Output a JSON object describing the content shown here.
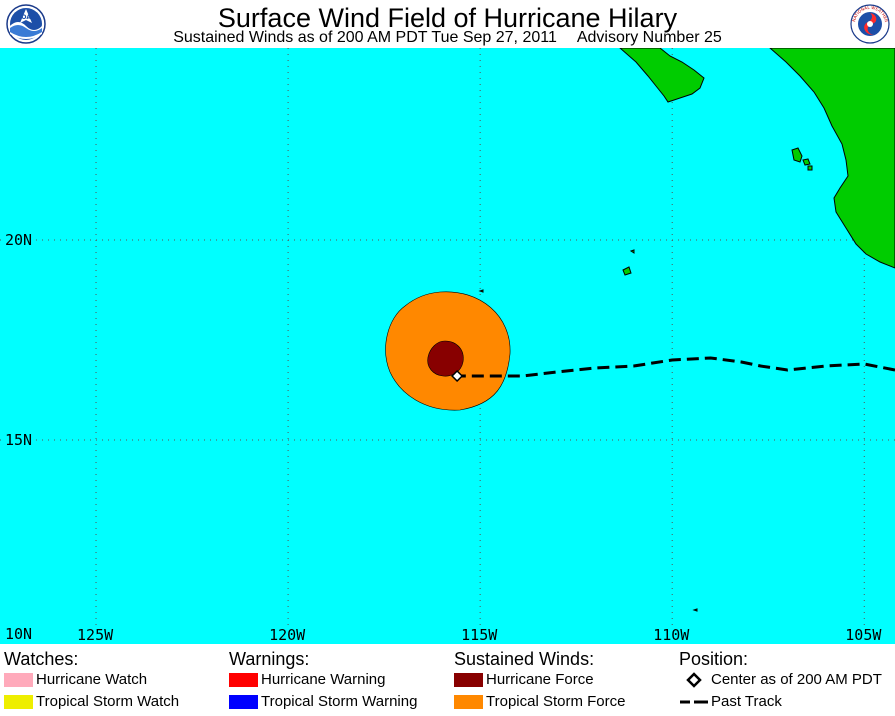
{
  "header": {
    "title": "Surface Wind Field of Hurricane Hilary",
    "subtitle_left": "Sustained Winds as of 200 AM PDT Tue Sep 27, 2011",
    "subtitle_right": "Advisory Number 25"
  },
  "logos": {
    "noaa": "NOAA",
    "nws": "NATIONAL WEATHER SERVICE"
  },
  "map": {
    "lon_range": [
      -127.5,
      -104.2
    ],
    "lat_range": [
      9.9,
      24.8
    ],
    "lat_labels": [
      {
        "value": 20,
        "text": "20N"
      },
      {
        "value": 15,
        "text": "15N"
      },
      {
        "value": 10,
        "text": "10N"
      }
    ],
    "lon_labels": [
      {
        "value": -125,
        "text": "125W"
      },
      {
        "value": -120,
        "text": "120W"
      },
      {
        "value": -115,
        "text": "115W"
      },
      {
        "value": -110,
        "text": "110W"
      },
      {
        "value": -105,
        "text": "105W"
      }
    ],
    "grid_lons": [
      -125,
      -120,
      -115,
      -110,
      -105
    ],
    "grid_lats": [
      15,
      20
    ],
    "storm_center": {
      "lon": -115.6,
      "lat": 16.6
    },
    "past_track": [
      [
        -104.2,
        16.75
      ],
      [
        -105,
        16.9
      ],
      [
        -106,
        16.85
      ],
      [
        -107,
        16.75
      ],
      [
        -107.7,
        16.85
      ],
      [
        -108.2,
        16.95
      ],
      [
        -109,
        17.05
      ],
      [
        -110,
        17.0
      ],
      [
        -111,
        16.85
      ],
      [
        -112,
        16.8
      ],
      [
        -113,
        16.7
      ],
      [
        -113.9,
        16.6
      ],
      [
        -115.6,
        16.6
      ]
    ],
    "colors": {
      "ocean": "#00ffff",
      "land": "#00cc00",
      "tropical_storm_force": "#ff8800",
      "hurricane_force": "#880000",
      "grid": "#555555",
      "track": "#000000"
    }
  },
  "legend": {
    "watches_title": "Watches:",
    "warnings_title": "Warnings:",
    "winds_title": "Sustained Winds:",
    "position_title": "Position:",
    "hurricane_watch": {
      "label": "Hurricane Watch",
      "color": "#ffaabb"
    },
    "ts_watch": {
      "label": "Tropical Storm Watch",
      "color": "#eeee00"
    },
    "hurricane_warning": {
      "label": "Hurricane Warning",
      "color": "#ff0000"
    },
    "ts_warning": {
      "label": "Tropical Storm Warning",
      "color": "#0000ff"
    },
    "hurricane_force": {
      "label": "Hurricane Force",
      "color": "#880000"
    },
    "ts_force": {
      "label": "Tropical Storm Force",
      "color": "#ff8800"
    },
    "center": {
      "label": "Center as of 200 AM PDT"
    },
    "past_track": {
      "label": "Past Track"
    }
  }
}
